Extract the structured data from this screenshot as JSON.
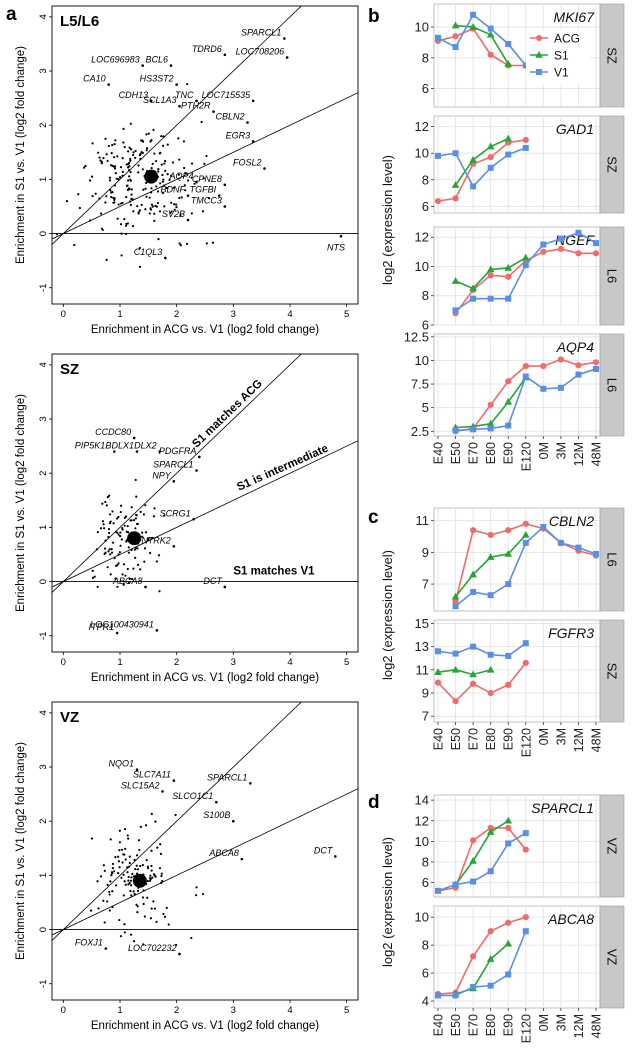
{
  "panel_letters": [
    "a",
    "b",
    "c",
    "d"
  ],
  "colors": {
    "ACG": "#f06b6b",
    "S1": "#27a536",
    "V1": "#5b8fe6",
    "strip": "#c8c8c8",
    "grid": "#e6e6e6",
    "panel_bg": "#ffffff"
  },
  "legend": [
    "ACG",
    "S1",
    "V1"
  ],
  "timepoints": [
    "E40",
    "E50",
    "E70",
    "E80",
    "E90",
    "E120",
    "0M",
    "3M",
    "12M",
    "48M"
  ],
  "chart_data": [
    {
      "id": "a1",
      "type": "scatter",
      "title": "L5/L6",
      "xlabel": "Enrichment in ACG vs. V1 (log2 fold change)",
      "ylabel": "Enrichment in S1 vs. V1 (log2 fold change)",
      "xlim": [
        -0.2,
        5.2
      ],
      "ylim": [
        -1.3,
        4.2
      ],
      "xticks": [
        0,
        1,
        2,
        3,
        4,
        5
      ],
      "yticks": [
        -1,
        0,
        1,
        2,
        3,
        4
      ],
      "centroid": [
        1.55,
        1.05
      ],
      "genes": [
        {
          "label": "LOC696983",
          "x": 1.4,
          "y": 3.1
        },
        {
          "label": "TDRD6",
          "x": 2.85,
          "y": 3.3
        },
        {
          "label": "SPARCL1",
          "x": 3.9,
          "y": 3.6
        },
        {
          "label": "LOC708206",
          "x": 3.95,
          "y": 3.25
        },
        {
          "label": "BCL6",
          "x": 1.9,
          "y": 3.1
        },
        {
          "label": "HS3ST2",
          "x": 2.0,
          "y": 2.75
        },
        {
          "label": "CA10",
          "x": 0.8,
          "y": 2.75
        },
        {
          "label": "CDH13",
          "x": 1.55,
          "y": 2.45
        },
        {
          "label": "SCL1A3",
          "x": 2.05,
          "y": 2.35
        },
        {
          "label": "TNC",
          "x": 2.35,
          "y": 2.45
        },
        {
          "label": "PTH2R",
          "x": 2.65,
          "y": 2.25
        },
        {
          "label": "LOC715535",
          "x": 3.35,
          "y": 2.45
        },
        {
          "label": "CBLN2",
          "x": 3.25,
          "y": 2.05
        },
        {
          "label": "EGR3",
          "x": 3.35,
          "y": 1.7
        },
        {
          "label": "FOSL2",
          "x": 3.55,
          "y": 1.2
        },
        {
          "label": "AQP4",
          "x": 2.35,
          "y": 0.95
        },
        {
          "label": "CPNE8",
          "x": 2.85,
          "y": 0.9
        },
        {
          "label": "TGFBI",
          "x": 2.75,
          "y": 0.7
        },
        {
          "label": "BDNF",
          "x": 2.2,
          "y": 0.7
        },
        {
          "label": "TMCC3",
          "x": 2.85,
          "y": 0.5
        },
        {
          "label": "SV2B",
          "x": 2.2,
          "y": 0.25
        },
        {
          "label": "C1QL3",
          "x": 1.8,
          "y": -0.45
        },
        {
          "label": "NTS",
          "x": 4.9,
          "y": -0.05
        }
      ]
    },
    {
      "id": "a2",
      "type": "scatter",
      "title": "SZ",
      "xlabel": "Enrichment in ACG vs. V1 (log2 fold change)",
      "ylabel": "Enrichment in S1 vs. V1 (log2 fold change)",
      "xlim": [
        -0.2,
        5.2
      ],
      "ylim": [
        -1.3,
        4.2
      ],
      "xticks": [
        0,
        1,
        2,
        3,
        4,
        5
      ],
      "yticks": [
        -1,
        0,
        1,
        2,
        3,
        4
      ],
      "centroid": [
        1.25,
        0.8
      ],
      "annotations": [
        "S1 matches ACG",
        "S1 is intermediate",
        "S1 matches V1"
      ],
      "genes": [
        {
          "label": "CCDC80",
          "x": 1.25,
          "y": 2.65
        },
        {
          "label": "PIP5K1B",
          "x": 0.9,
          "y": 2.4
        },
        {
          "label": "DLX1",
          "x": 1.3,
          "y": 2.4
        },
        {
          "label": "DLX2",
          "x": 1.7,
          "y": 2.4
        },
        {
          "label": "PDGFRA",
          "x": 2.4,
          "y": 2.3
        },
        {
          "label": "SPARCL1",
          "x": 2.35,
          "y": 2.05
        },
        {
          "label": "NPY",
          "x": 1.95,
          "y": 1.85
        },
        {
          "label": "SCRG1",
          "x": 2.3,
          "y": 1.15
        },
        {
          "label": "NTRK2",
          "x": 1.95,
          "y": 0.65
        },
        {
          "label": "ABCA8",
          "x": 1.45,
          "y": -0.1
        },
        {
          "label": "DCT",
          "x": 2.85,
          "y": -0.1
        },
        {
          "label": "ITPR1",
          "x": 0.95,
          "y": -0.95
        },
        {
          "label": "LOC100430941",
          "x": 1.65,
          "y": -0.9
        }
      ]
    },
    {
      "id": "a3",
      "type": "scatter",
      "title": "VZ",
      "xlabel": "Enrichment in ACG vs. V1 (log2 fold change)",
      "ylabel": "Enrichment in S1 vs. V1 (log2 fold change)",
      "xlim": [
        -0.2,
        5.2
      ],
      "ylim": [
        -1.3,
        4.2
      ],
      "xticks": [
        0,
        1,
        2,
        3,
        4,
        5
      ],
      "yticks": [
        -1,
        0,
        1,
        2,
        3,
        4
      ],
      "centroid": [
        1.35,
        0.9
      ],
      "genes": [
        {
          "label": "NQO1",
          "x": 1.3,
          "y": 2.95
        },
        {
          "label": "SLC7A11",
          "x": 1.95,
          "y": 2.75
        },
        {
          "label": "SLC15A2",
          "x": 1.75,
          "y": 2.55
        },
        {
          "label": "SPARCL1",
          "x": 3.3,
          "y": 2.7
        },
        {
          "label": "SLCO1C1",
          "x": 2.7,
          "y": 2.35
        },
        {
          "label": "S100B",
          "x": 3.0,
          "y": 2.0
        },
        {
          "label": "DCT",
          "x": 4.8,
          "y": 1.35
        },
        {
          "label": "ABCA8",
          "x": 3.15,
          "y": 1.3
        },
        {
          "label": "FOXJ1",
          "x": 0.75,
          "y": -0.35
        },
        {
          "label": "LOC702232",
          "x": 2.05,
          "y": -0.45
        }
      ]
    },
    {
      "id": "b1",
      "type": "line",
      "gene": "MKI67",
      "strip": "SZ",
      "ylim": [
        4.8,
        11.5
      ],
      "yticks": [
        6,
        8,
        10
      ],
      "show_legend": true,
      "series": [
        {
          "name": "ACG",
          "values": [
            9.1,
            9.4,
            9.9,
            8.2,
            7.5,
            7.5
          ]
        },
        {
          "name": "S1",
          "values": [
            null,
            10.1,
            10.0,
            9.5,
            7.6
          ]
        },
        {
          "name": "V1",
          "values": [
            9.3,
            8.7,
            10.8,
            9.9,
            8.9,
            7.5
          ]
        }
      ]
    },
    {
      "id": "b2",
      "type": "line",
      "gene": "GAD1",
      "strip": "SZ",
      "ylim": [
        5.5,
        12.8
      ],
      "yticks": [
        6,
        8,
        10,
        12
      ],
      "series": [
        {
          "name": "ACG",
          "values": [
            6.4,
            6.6,
            9.2,
            9.7,
            10.8,
            11.0
          ]
        },
        {
          "name": "S1",
          "values": [
            null,
            7.6,
            9.5,
            10.5,
            11.1
          ]
        },
        {
          "name": "V1",
          "values": [
            9.8,
            10.0,
            7.5,
            8.9,
            9.9,
            10.4
          ]
        }
      ]
    },
    {
      "id": "b3",
      "type": "line",
      "gene": "NGEF",
      "strip": "L6",
      "ylim": [
        6.0,
        12.7
      ],
      "yticks": [
        6,
        8,
        10,
        12
      ],
      "series": [
        {
          "name": "ACG",
          "values": [
            null,
            6.8,
            8.4,
            9.4,
            9.3,
            10.4,
            11.0,
            11.2,
            10.9,
            10.9
          ]
        },
        {
          "name": "S1",
          "values": [
            null,
            9.0,
            8.5,
            9.8,
            9.9,
            10.6
          ]
        },
        {
          "name": "V1",
          "values": [
            null,
            7.0,
            7.8,
            7.8,
            7.8,
            10.1,
            11.5,
            11.9,
            12.3,
            11.6
          ]
        }
      ]
    },
    {
      "id": "b4",
      "type": "line",
      "gene": "AQP4",
      "strip": "L6",
      "ylim": [
        2.0,
        12.8
      ],
      "yticks": [
        2.5,
        5.0,
        7.5,
        10.0,
        12.5
      ],
      "series": [
        {
          "name": "ACG",
          "values": [
            null,
            2.5,
            2.8,
            5.3,
            7.8,
            9.4,
            9.4,
            10.1,
            9.5,
            9.8
          ]
        },
        {
          "name": "S1",
          "values": [
            null,
            2.9,
            3.0,
            3.3,
            5.6,
            8.2
          ]
        },
        {
          "name": "V1",
          "values": [
            null,
            2.6,
            2.7,
            2.8,
            3.1,
            8.3,
            7.0,
            7.1,
            8.5,
            9.1
          ]
        }
      ]
    },
    {
      "id": "c1",
      "type": "line",
      "gene": "CBLN2",
      "strip": "L6",
      "ylim": [
        5.3,
        11.8
      ],
      "yticks": [
        7,
        9,
        11
      ],
      "series": [
        {
          "name": "ACG",
          "values": [
            null,
            5.9,
            10.4,
            10.1,
            10.4,
            10.8,
            10.5,
            9.6,
            9.1,
            8.8
          ]
        },
        {
          "name": "S1",
          "values": [
            null,
            6.2,
            7.6,
            8.7,
            8.9,
            10.1
          ]
        },
        {
          "name": "V1",
          "values": [
            null,
            5.6,
            6.5,
            6.3,
            7.0,
            9.6,
            10.6,
            9.6,
            9.3,
            8.9
          ]
        }
      ]
    },
    {
      "id": "c2",
      "type": "line",
      "gene": "FGFR3",
      "strip": "SZ",
      "ylim": [
        6.5,
        15.3
      ],
      "yticks": [
        7,
        9,
        11,
        13,
        15
      ],
      "series": [
        {
          "name": "ACG",
          "values": [
            9.9,
            8.3,
            9.8,
            9.0,
            9.7,
            11.6
          ]
        },
        {
          "name": "S1",
          "values": [
            10.8,
            11.0,
            10.6,
            11.0
          ]
        },
        {
          "name": "V1",
          "values": [
            12.6,
            12.4,
            13.0,
            12.3,
            12.2,
            13.3
          ]
        }
      ]
    },
    {
      "id": "d1",
      "type": "line",
      "gene": "SPARCL1",
      "strip": "VZ",
      "ylim": [
        4.6,
        14.5
      ],
      "yticks": [
        6,
        8,
        10,
        12,
        14
      ],
      "series": [
        {
          "name": "ACG",
          "values": [
            5.2,
            5.5,
            10.1,
            11.3,
            11.3,
            9.2
          ]
        },
        {
          "name": "S1",
          "values": [
            null,
            5.8,
            8.1,
            10.9,
            12.0
          ]
        },
        {
          "name": "V1",
          "values": [
            5.2,
            5.8,
            6.1,
            7.1,
            9.8,
            10.8
          ]
        }
      ]
    },
    {
      "id": "d2",
      "type": "line",
      "gene": "ABCA8",
      "strip": "VZ",
      "ylim": [
        3.5,
        10.8
      ],
      "yticks": [
        4,
        6,
        8,
        10
      ],
      "series": [
        {
          "name": "ACG",
          "values": [
            4.5,
            4.6,
            7.2,
            9.0,
            9.6,
            10.0
          ]
        },
        {
          "name": "S1",
          "values": [
            null,
            4.5,
            4.9,
            7.0,
            8.1
          ]
        },
        {
          "name": "V1",
          "values": [
            4.4,
            4.4,
            5.0,
            5.1,
            5.9,
            9.0
          ]
        }
      ]
    }
  ],
  "ylabel_b": "log2 (expression level)",
  "ylabel_c": "log2 (expression level)",
  "ylabel_d": "log2 (expression level)"
}
